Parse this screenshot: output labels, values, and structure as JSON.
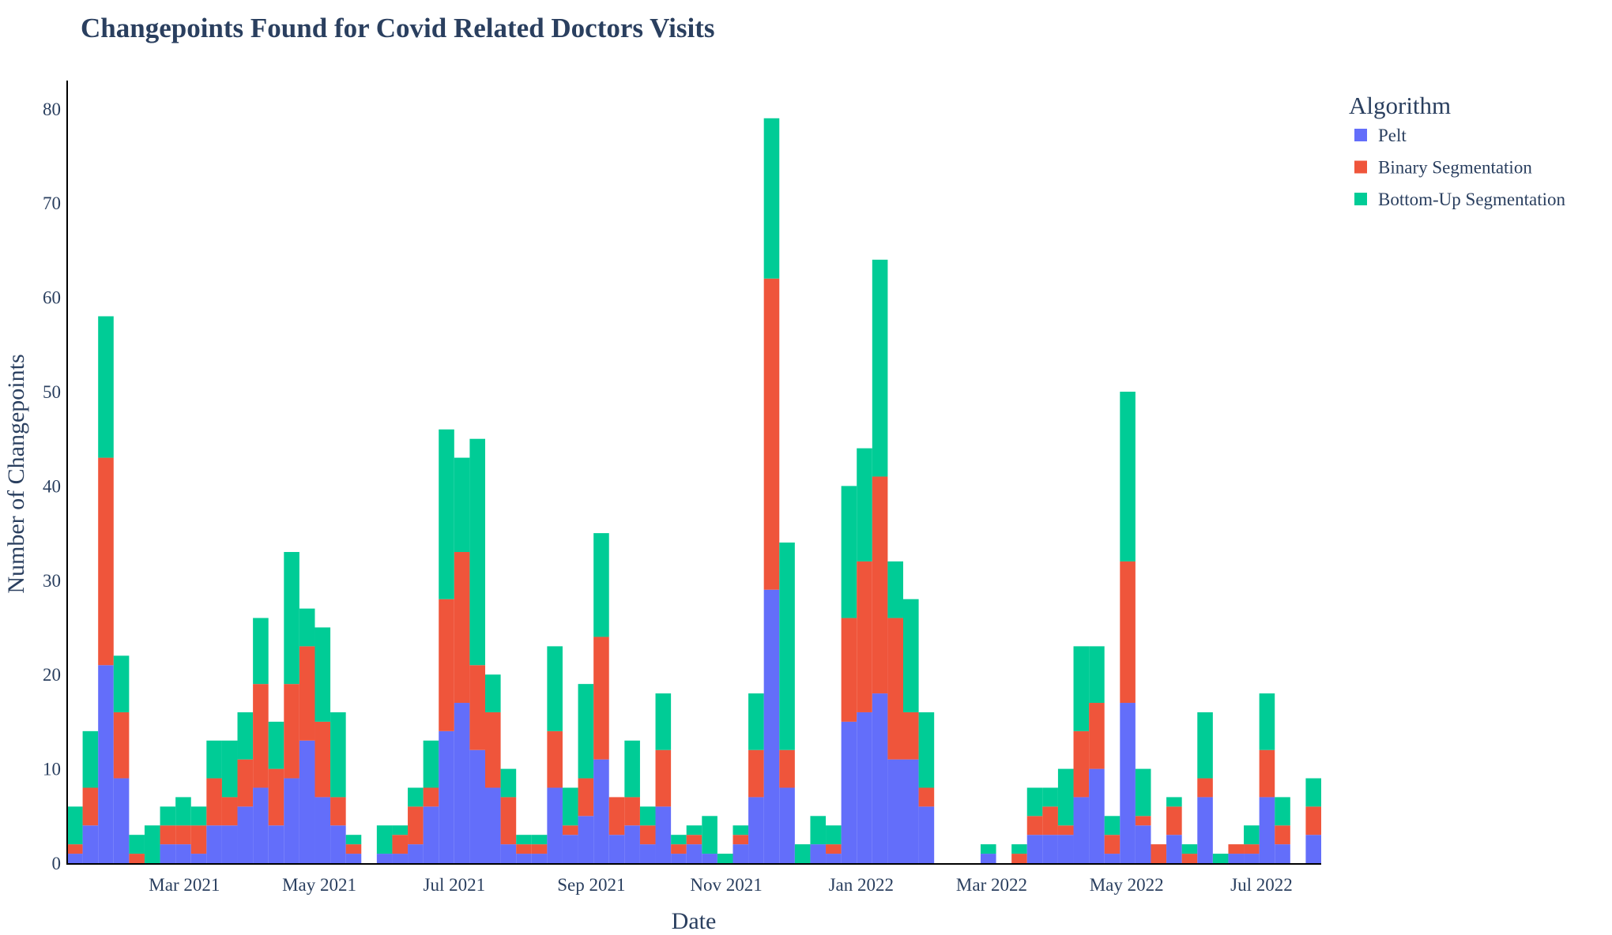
{
  "chart_data": {
    "type": "bar",
    "stacked": true,
    "title": "Changepoints Found for Covid Related Doctors Visits",
    "xlabel": "Date",
    "ylabel": "Number of Changepoints",
    "ylim": [
      0,
      83
    ],
    "yticks": [
      0,
      10,
      20,
      30,
      40,
      50,
      60,
      70,
      80
    ],
    "xlim": [
      "2021-01-07",
      "2022-07-28"
    ],
    "xticks": [
      {
        "date": "2021-03-01",
        "label": "Mar 2021"
      },
      {
        "date": "2021-05-01",
        "label": "May 2021"
      },
      {
        "date": "2021-07-01",
        "label": "Jul 2021"
      },
      {
        "date": "2021-09-01",
        "label": "Sep 2021"
      },
      {
        "date": "2021-11-01",
        "label": "Nov 2021"
      },
      {
        "date": "2022-01-01",
        "label": "Jan 2022"
      },
      {
        "date": "2022-03-01",
        "label": "Mar 2022"
      },
      {
        "date": "2022-05-01",
        "label": "May 2022"
      },
      {
        "date": "2022-07-01",
        "label": "Jul 2022"
      }
    ],
    "grid": false,
    "legend_title": "Algorithm",
    "legend_placement": "top-right",
    "bin_starts": [
      "2021-01-07",
      "2021-01-14",
      "2021-01-21",
      "2021-01-28",
      "2021-02-04",
      "2021-02-11",
      "2021-02-18",
      "2021-02-25",
      "2021-03-04",
      "2021-03-11",
      "2021-03-18",
      "2021-03-25",
      "2021-04-01",
      "2021-04-08",
      "2021-04-15",
      "2021-04-22",
      "2021-04-29",
      "2021-05-06",
      "2021-05-13",
      "2021-05-20",
      "2021-05-27",
      "2021-06-03",
      "2021-06-10",
      "2021-06-17",
      "2021-06-24",
      "2021-07-01",
      "2021-07-08",
      "2021-07-15",
      "2021-07-22",
      "2021-07-29",
      "2021-08-05",
      "2021-08-12",
      "2021-08-19",
      "2021-08-26",
      "2021-09-02",
      "2021-09-09",
      "2021-09-16",
      "2021-09-23",
      "2021-09-30",
      "2021-10-07",
      "2021-10-14",
      "2021-10-21",
      "2021-10-28",
      "2021-11-04",
      "2021-11-11",
      "2021-11-18",
      "2021-11-25",
      "2021-12-02",
      "2021-12-09",
      "2021-12-16",
      "2021-12-23",
      "2021-12-30",
      "2022-01-06",
      "2022-01-13",
      "2022-01-20",
      "2022-01-27",
      "2022-02-03",
      "2022-02-10",
      "2022-02-17",
      "2022-02-24",
      "2022-03-03",
      "2022-03-10",
      "2022-03-17",
      "2022-03-24",
      "2022-03-31",
      "2022-04-07",
      "2022-04-14",
      "2022-04-21",
      "2022-04-28",
      "2022-05-05",
      "2022-05-12",
      "2022-05-19",
      "2022-05-26",
      "2022-06-02",
      "2022-06-09",
      "2022-06-16",
      "2022-06-23",
      "2022-06-30",
      "2022-07-07",
      "2022-07-14",
      "2022-07-21"
    ],
    "bin_days": 7,
    "series": [
      {
        "name": "Pelt",
        "color": "#636efa",
        "values": [
          1,
          4,
          21,
          9,
          0,
          0,
          2,
          2,
          1,
          4,
          4,
          6,
          8,
          4,
          9,
          13,
          7,
          4,
          1,
          0,
          1,
          1,
          2,
          6,
          14,
          17,
          12,
          8,
          2,
          1,
          1,
          8,
          3,
          5,
          11,
          3,
          4,
          2,
          6,
          1,
          2,
          1,
          0,
          2,
          7,
          29,
          8,
          0,
          2,
          1,
          15,
          16,
          18,
          11,
          11,
          6,
          0,
          0,
          0,
          1,
          0,
          0,
          3,
          3,
          3,
          7,
          10,
          1,
          17,
          4,
          0,
          3,
          0,
          7,
          0,
          1,
          1,
          7,
          2,
          0,
          3
        ]
      },
      {
        "name": "Binary Segmentation",
        "color": "#EF553B",
        "values": [
          1,
          4,
          22,
          7,
          1,
          0,
          2,
          2,
          3,
          5,
          3,
          5,
          11,
          6,
          10,
          10,
          8,
          3,
          1,
          0,
          0,
          2,
          4,
          2,
          14,
          16,
          9,
          8,
          5,
          1,
          1,
          6,
          1,
          4,
          13,
          4,
          3,
          2,
          6,
          1,
          1,
          0,
          0,
          1,
          5,
          33,
          4,
          0,
          0,
          1,
          11,
          16,
          23,
          15,
          5,
          2,
          0,
          0,
          0,
          0,
          0,
          1,
          2,
          3,
          1,
          7,
          7,
          2,
          15,
          1,
          2,
          3,
          1,
          2,
          0,
          1,
          1,
          5,
          2,
          0,
          3
        ]
      },
      {
        "name": "Bottom-Up Segmentation",
        "color": "#00cc96",
        "values": [
          4,
          6,
          15,
          6,
          2,
          4,
          2,
          3,
          2,
          4,
          6,
          5,
          7,
          5,
          14,
          4,
          10,
          9,
          1,
          0,
          3,
          1,
          2,
          5,
          18,
          10,
          24,
          4,
          3,
          1,
          1,
          9,
          4,
          10,
          11,
          0,
          6,
          2,
          6,
          1,
          1,
          4,
          1,
          1,
          6,
          17,
          22,
          2,
          3,
          2,
          14,
          12,
          23,
          6,
          12,
          8,
          0,
          0,
          0,
          1,
          0,
          1,
          3,
          2,
          6,
          9,
          6,
          2,
          18,
          5,
          0,
          1,
          1,
          7,
          1,
          0,
          2,
          6,
          3,
          0,
          3
        ]
      }
    ]
  }
}
